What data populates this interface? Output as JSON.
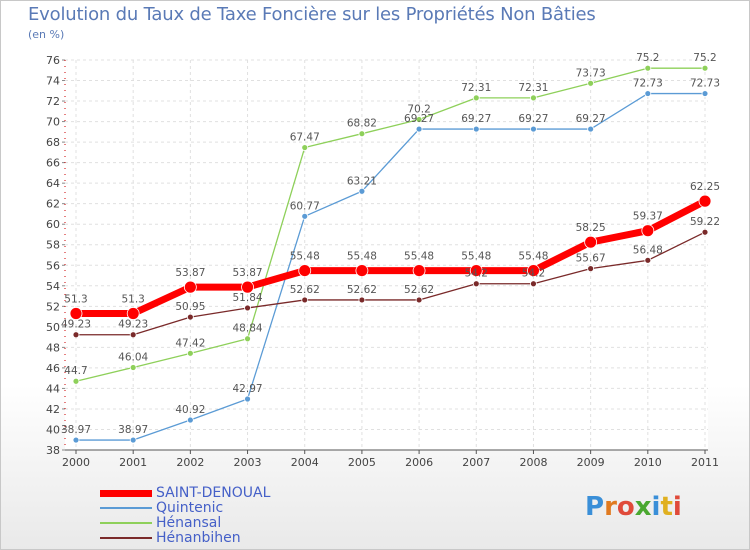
{
  "title": "Evolution du Taux de Taxe Foncière sur les Propriétés Non Bâties",
  "unit_label": "(en %)",
  "logo_text": "Proxiti",
  "chart_data": {
    "type": "line",
    "title": "Evolution du Taux de Taxe Foncière sur les Propriétés Non Bâties",
    "ylabel": "(en %)",
    "xlabel": "",
    "ylim": [
      38,
      76
    ],
    "y_ticks": [
      "38",
      "40",
      "42",
      "44",
      "46",
      "48",
      "50",
      "52",
      "54",
      "56",
      "58",
      "60",
      "62",
      "64",
      "66",
      "68",
      "70",
      "72",
      "74",
      "76"
    ],
    "x": [
      "2000",
      "2001",
      "2002",
      "2003",
      "2004",
      "2005",
      "2006",
      "2007",
      "2008",
      "2009",
      "2010",
      "2011"
    ],
    "grid": true,
    "legend_position": "bottom-left",
    "series": [
      {
        "name": "Quintenic",
        "color": "#5b9bd5",
        "values": [
          38.97,
          38.97,
          40.92,
          42.97,
          60.77,
          63.21,
          69.27,
          69.27,
          69.27,
          69.27,
          72.73,
          72.73
        ],
        "labels": [
          "38.97",
          "38.97",
          "40.92",
          "42.97",
          "60.77",
          "63.21",
          "69.27",
          "69.27",
          "69.27",
          "69.27",
          "72.73",
          "72.73"
        ]
      },
      {
        "name": "Hénansal",
        "color": "#8ed05a",
        "values": [
          44.7,
          46.04,
          47.42,
          48.84,
          67.47,
          68.82,
          70.2,
          72.31,
          72.31,
          73.73,
          75.2,
          75.2
        ],
        "labels": [
          "44.7",
          "46.04",
          "47.42",
          "48.84",
          "67.47",
          "68.82",
          "70.2",
          "72.31",
          "72.31",
          "73.73",
          "75.2",
          "75.2"
        ]
      },
      {
        "name": "Hénanbihen",
        "color": "#7a2a2a",
        "values": [
          49.23,
          49.23,
          50.95,
          51.84,
          52.62,
          52.62,
          52.62,
          54.2,
          54.2,
          55.67,
          56.48,
          59.22
        ],
        "labels": [
          "49.23",
          "49.23",
          "50.95",
          "51.84",
          "52.62",
          "52.62",
          "52.62",
          "54.2",
          "54.2",
          "55.67",
          "56.48",
          "59.22"
        ]
      },
      {
        "name": "SAINT-DENOUAL",
        "color": "#ff0000",
        "values": [
          51.3,
          51.3,
          53.87,
          53.87,
          55.48,
          55.48,
          55.48,
          55.48,
          55.48,
          58.25,
          59.37,
          62.25
        ],
        "labels": [
          "51.3",
          "51.3",
          "53.87",
          "53.87",
          "55.48",
          "55.48",
          "55.48",
          "55.48",
          "55.48",
          "58.25",
          "59.37",
          "62.25"
        ]
      }
    ],
    "legend": [
      "SAINT-DENOUAL",
      "Quintenic",
      "Hénansal",
      "Hénanbihen"
    ]
  }
}
